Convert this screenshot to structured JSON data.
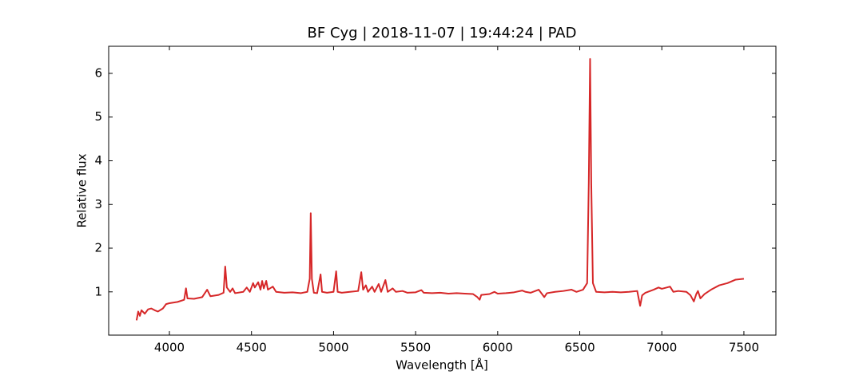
{
  "chart_data": {
    "type": "line",
    "title": "BF Cyg | 2018-11-07 | 19:44:24 | PAD",
    "x_label": "Wavelength [Å]",
    "y_label": "Relative flux",
    "xlim": [
      3630,
      7695
    ],
    "ylim": [
      0.01,
      6.62
    ],
    "xticks": [
      4000,
      4500,
      5000,
      5500,
      6000,
      6500,
      7000,
      7500
    ],
    "yticks": [
      1,
      2,
      3,
      4,
      5,
      6
    ],
    "grid": false,
    "series": [
      {
        "name": "BF Cyg",
        "color": "#d62728",
        "x": [
          3800,
          3810,
          3820,
          3830,
          3850,
          3870,
          3890,
          3910,
          3930,
          3960,
          3980,
          4000,
          4050,
          4090,
          4101,
          4110,
          4150,
          4200,
          4230,
          4250,
          4300,
          4330,
          4340,
          4350,
          4370,
          4385,
          4400,
          4450,
          4471,
          4490,
          4510,
          4520,
          4541,
          4555,
          4565,
          4575,
          4590,
          4600,
          4630,
          4650,
          4700,
          4750,
          4800,
          4840,
          4855,
          4861,
          4868,
          4880,
          4900,
          4921,
          4930,
          4960,
          5000,
          5016,
          5025,
          5050,
          5100,
          5150,
          5169,
          5180,
          5197,
          5210,
          5235,
          5250,
          5275,
          5290,
          5316,
          5330,
          5360,
          5380,
          5420,
          5450,
          5500,
          5535,
          5550,
          5600,
          5650,
          5700,
          5750,
          5800,
          5850,
          5876,
          5890,
          5900,
          5950,
          5980,
          6000,
          6050,
          6100,
          6150,
          6170,
          6200,
          6250,
          6270,
          6284,
          6300,
          6350,
          6400,
          6450,
          6480,
          6520,
          6545,
          6555,
          6563,
          6570,
          6580,
          6600,
          6650,
          6700,
          6750,
          6800,
          6850,
          6868,
          6880,
          6900,
          6950,
          6980,
          7000,
          7030,
          7050,
          7070,
          7100,
          7150,
          7175,
          7195,
          7210,
          7220,
          7235,
          7260,
          7300,
          7350,
          7400,
          7450,
          7500
        ],
        "values": [
          0.35,
          0.55,
          0.45,
          0.58,
          0.5,
          0.6,
          0.62,
          0.58,
          0.55,
          0.62,
          0.72,
          0.74,
          0.77,
          0.82,
          1.08,
          0.85,
          0.84,
          0.88,
          1.05,
          0.9,
          0.93,
          0.98,
          1.58,
          1.1,
          1.0,
          1.08,
          0.97,
          1.0,
          1.1,
          1.0,
          1.2,
          1.1,
          1.22,
          1.05,
          1.25,
          1.08,
          1.25,
          1.05,
          1.12,
          1.0,
          0.98,
          0.99,
          0.97,
          1.0,
          1.3,
          2.8,
          1.3,
          0.98,
          0.97,
          1.4,
          1.0,
          0.98,
          1.0,
          1.47,
          1.0,
          0.98,
          1.0,
          1.02,
          1.45,
          1.05,
          1.15,
          1.0,
          1.12,
          1.0,
          1.18,
          1.0,
          1.27,
          1.0,
          1.08,
          1.0,
          1.02,
          0.98,
          0.99,
          1.04,
          0.98,
          0.97,
          0.98,
          0.96,
          0.97,
          0.96,
          0.95,
          0.88,
          0.82,
          0.93,
          0.95,
          1.0,
          0.96,
          0.97,
          0.99,
          1.03,
          1.0,
          0.98,
          1.05,
          0.95,
          0.88,
          0.97,
          1.0,
          1.02,
          1.05,
          1.0,
          1.05,
          1.2,
          3.5,
          6.33,
          3.5,
          1.2,
          1.0,
          0.99,
          1.0,
          0.99,
          1.0,
          1.02,
          0.68,
          0.92,
          0.98,
          1.05,
          1.1,
          1.07,
          1.1,
          1.12,
          1.0,
          1.02,
          1.0,
          0.92,
          0.78,
          0.95,
          1.02,
          0.85,
          0.95,
          1.05,
          1.15,
          1.2,
          1.28,
          1.3
        ]
      }
    ]
  }
}
